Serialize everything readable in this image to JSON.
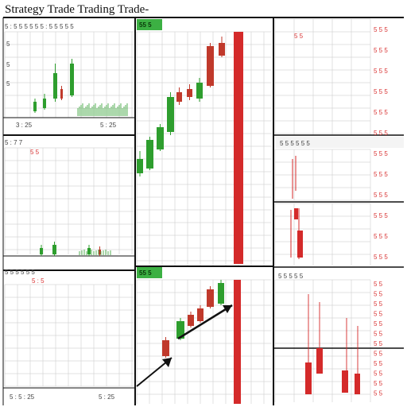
{
  "window": {
    "title": "Strategy Trade Trading Trade-"
  },
  "colors": {
    "background": "#ffffff",
    "grid": "#d6d6d6",
    "frame": "#111111",
    "bullish": "#2e9e2e",
    "bearish": "#c0392b",
    "marker": "#d42a2a",
    "label_red": "#d93636",
    "badge": "#3cb043"
  },
  "panels": {
    "top_left": {
      "axis_labels": [
        "5",
        "5",
        "5"
      ],
      "bottom_labels": [
        "3 : 25",
        "5 : 25"
      ]
    },
    "middle_left": {
      "header": "5 : 7 7",
      "sub_label": "5  5"
    },
    "bottom_left": {
      "header": "5 : 5",
      "bottom_labels": [
        "5 : 5 : 25",
        "5 : 25"
      ]
    },
    "center_top": {
      "badge": "55 5"
    },
    "center_bottom": {
      "badge": "55 5"
    },
    "right_top": {
      "header": "5 5"
    },
    "right_middle": {
      "header": "5 5 5 5 5 5"
    },
    "right_bottom": {
      "header": "5 5 5 5 5"
    },
    "right_axis_top": [
      "5 5 5",
      "5 5 5",
      "5 5 5",
      "5 5 5",
      "5 5 5",
      "5 5 5",
      "5 5 5",
      "5 5 5",
      "5 5 5",
      "5 5 5",
      "5 5 5",
      "5 5 5"
    ],
    "right_axis_bottom": [
      "5 5",
      "5 5",
      "5 5",
      "5 5",
      "5 5",
      "5 5",
      "5 5",
      "5 5",
      "5 5",
      "5 5",
      "5 5",
      "5 5"
    ]
  }
}
